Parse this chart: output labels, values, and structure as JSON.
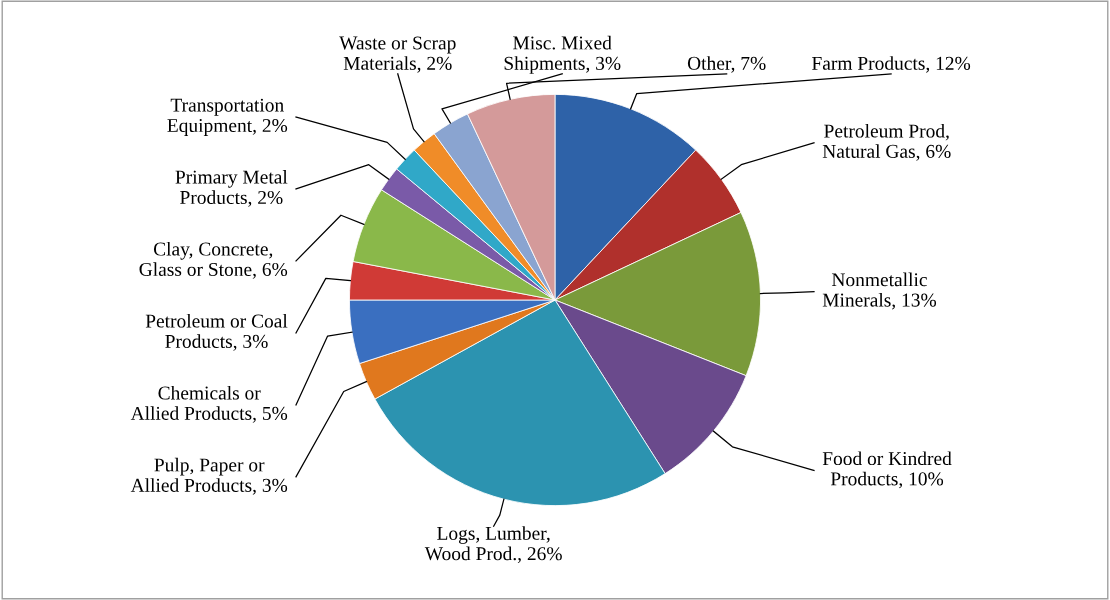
{
  "chart_data": {
    "type": "pie",
    "categories": [
      "Farm Products",
      "Petroleum Prod,\nNatural Gas",
      "Nonmetallic\nMinerals",
      "Food or Kindred\nProducts",
      "Logs, Lumber,\nWood Prod.",
      "Pulp, Paper or\nAllied Products",
      "Chemicals or\nAllied Products",
      "Petroleum or Coal\nProducts",
      "Clay, Concrete,\nGlass or Stone",
      "Primary Metal\nProducts",
      "Transportation\nEquipment",
      "Waste or Scrap\nMaterials",
      "Misc. Mixed\nShipments",
      "Other"
    ],
    "values": [
      12,
      6,
      13,
      10,
      26,
      3,
      5,
      3,
      6,
      2,
      2,
      2,
      3,
      7
    ],
    "value_labels": [
      "12%",
      "6%",
      "13%",
      "10%",
      "26%",
      "3%",
      "5%",
      "3%",
      "6%",
      "2%",
      "2%",
      "2%",
      "3%",
      "7%"
    ],
    "colors": [
      "#2e62a8",
      "#b0302c",
      "#7a9a3a",
      "#6a4a8c",
      "#2c93b0",
      "#e0781e",
      "#3a6fc0",
      "#d03a36",
      "#8ab84a",
      "#7a5aa8",
      "#30a8c8",
      "#f08c28",
      "#8aa4d0",
      "#d49a9a"
    ],
    "legend": false
  }
}
